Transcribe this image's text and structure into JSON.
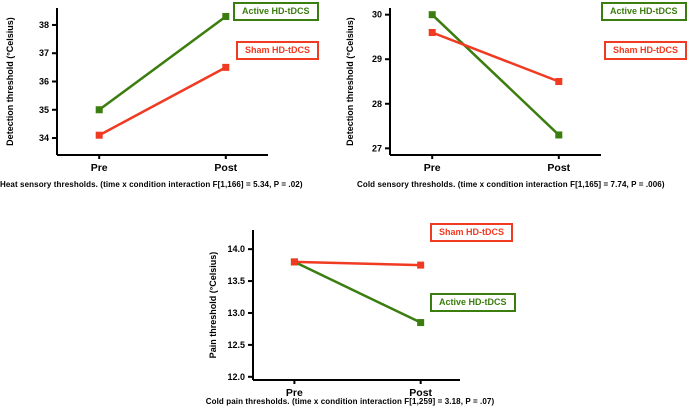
{
  "figure": {
    "background": "#ffffff"
  },
  "colors": {
    "active": "#3b7d0e",
    "sham": "#f03a21",
    "axis": "#000000",
    "text": "#000000"
  },
  "chart_data": [
    {
      "id": "heat",
      "type": "line",
      "ylabel": "Detection threshold (°Celsius)",
      "caption": "Heat sensory thresholds. (time x condition interaction F[1,166] = 5.34, P = .02)",
      "categories": [
        "Pre",
        "Post"
      ],
      "ylim": [
        33.4,
        38.6
      ],
      "yticks": [
        "34",
        "35",
        "36",
        "37",
        "38"
      ],
      "grid": false,
      "legend_position": "top-right",
      "series": [
        {
          "name": "Active HD-tDCS",
          "color": "active",
          "values": [
            35.0,
            38.3
          ]
        },
        {
          "name": "Sham HD-tDCS",
          "color": "sham",
          "values": [
            34.1,
            36.5
          ]
        }
      ],
      "legend": [
        {
          "label": "Active HD-tDCS",
          "color": "active"
        },
        {
          "label": "Sham HD-tDCS",
          "color": "sham"
        }
      ]
    },
    {
      "id": "cold",
      "type": "line",
      "ylabel": "Detection threshold (°Celsius)",
      "caption": "Cold sensory thresholds. (time x condition interaction F[1,165] = 7.74, P = .006)",
      "categories": [
        "Pre",
        "Post"
      ],
      "ylim": [
        26.85,
        30.15
      ],
      "yticks": [
        "27",
        "28",
        "29",
        "30"
      ],
      "grid": false,
      "legend_position": "top-right",
      "series": [
        {
          "name": "Active HD-tDCS",
          "color": "active",
          "values": [
            30.0,
            27.3
          ]
        },
        {
          "name": "Sham HD-tDCS",
          "color": "sham",
          "values": [
            29.6,
            28.5
          ]
        }
      ],
      "legend": [
        {
          "label": "Active HD-tDCS",
          "color": "active"
        },
        {
          "label": "Sham HD-tDCS",
          "color": "sham"
        }
      ]
    },
    {
      "id": "pain",
      "type": "line",
      "ylabel": "Pain threshold (°Celsius)",
      "caption": "Cold pain thresholds. (time x condition interaction F[1,259] = 3.18, P = .07)",
      "categories": [
        "Pre",
        "Post"
      ],
      "ylim": [
        11.95,
        14.3
      ],
      "yticks": [
        "12.0",
        "12.5",
        "13.0",
        "13.5",
        "14.0"
      ],
      "grid": false,
      "legend_position": "right",
      "series": [
        {
          "name": "Active HD-tDCS",
          "color": "active",
          "values": [
            13.8,
            12.85
          ]
        },
        {
          "name": "Sham HD-tDCS",
          "color": "sham",
          "values": [
            13.8,
            13.75
          ]
        }
      ],
      "legend": [
        {
          "label": "Sham HD-tDCS",
          "color": "sham"
        },
        {
          "label": "Active HD-tDCS",
          "color": "active"
        }
      ]
    }
  ]
}
